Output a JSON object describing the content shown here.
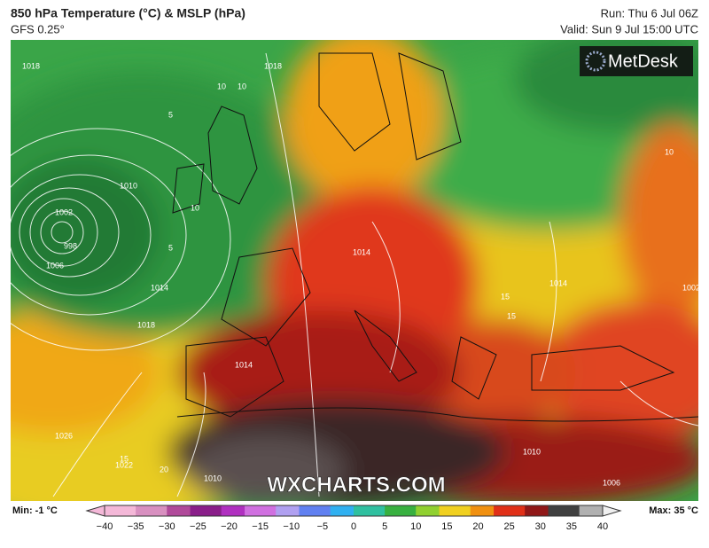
{
  "header": {
    "title": "850 hPa Temperature (°C) & MSLP (hPa)",
    "model": "GFS 0.25°",
    "run": "Run: Thu 6 Jul 06Z",
    "valid": "Valid: Sun 9 Jul 15:00 UTC"
  },
  "logo": "MetDesk",
  "watermark": "WXCHARTS.COM",
  "isobar_labels": [
    "1018",
    "1010",
    "1002",
    "998",
    "1006",
    "1014",
    "1018",
    "1018",
    "1014",
    "1014",
    "1022",
    "1026",
    "1010",
    "1014",
    "1002",
    "1010",
    "1006"
  ],
  "contour_labels": [
    "5",
    "5",
    "10",
    "10",
    "10",
    "10",
    "15",
    "15",
    "20",
    "15"
  ],
  "legend": {
    "min": "Min: -1 °C",
    "max": "Max: 35 °C",
    "ticks": [
      "−40",
      "−35",
      "−30",
      "−25",
      "−20",
      "−15",
      "−10",
      "−5",
      "0",
      "5",
      "10",
      "15",
      "20",
      "25",
      "30",
      "35",
      "40"
    ]
  }
}
